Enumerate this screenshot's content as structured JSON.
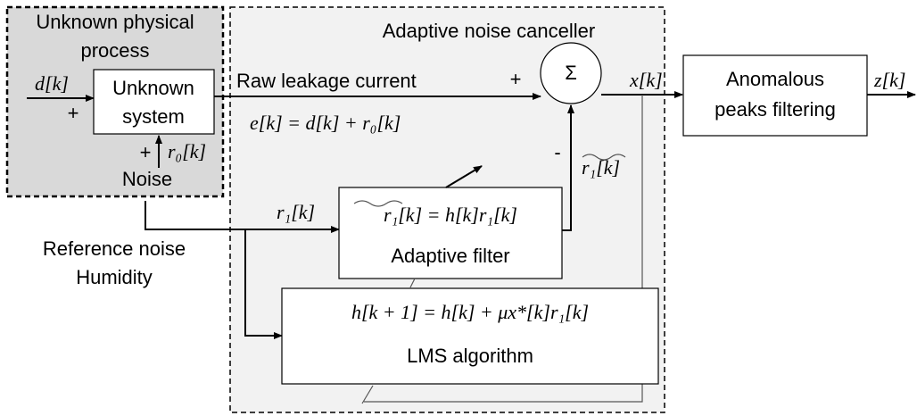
{
  "process_box": {
    "title_lines": [
      "Unknown physical",
      "process"
    ],
    "input": "d[k]",
    "input_sign": "+",
    "system": [
      "Unknown",
      "system"
    ],
    "noise_sign": "+",
    "noise_symbol": "r₀[k]",
    "noise_label": "Noise"
  },
  "canceller": {
    "title": "Adaptive noise canceller",
    "raw_label": "Raw leakage current",
    "raw_sign": "+",
    "sum_symbol": "Σ",
    "output": "x[k]",
    "equation": "e[k] = d[k] + r₀[k]",
    "estimate_sign": "-",
    "estimate": "r₁[k]",
    "reference": "r₁[k]",
    "filter": {
      "equation": "r₁[k] = h[k]r₁[k]",
      "label": "Adaptive filter"
    },
    "lms": {
      "equation": "h[k + 1] = h[k] + μx*[k]r₁[k]",
      "label": "LMS algorithm"
    }
  },
  "reference_label": [
    "Reference noise",
    "Humidity"
  ],
  "filtering": {
    "label": [
      "Anomalous",
      "peaks filtering"
    ],
    "output": "z[k]"
  }
}
